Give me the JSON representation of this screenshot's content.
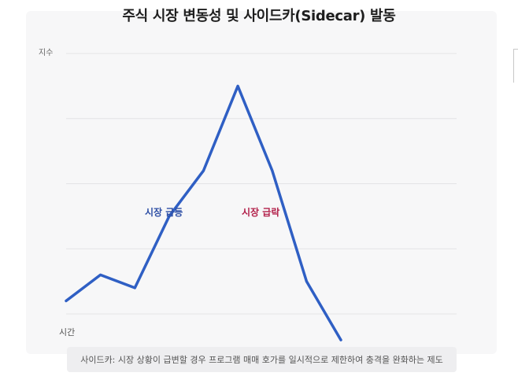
{
  "chart_data": {
    "type": "line",
    "title": "주식 시장 변동성 및 사이드카(Sidecar) 발동",
    "ylabel": "지수",
    "xlabel": "시간",
    "x": [
      1,
      2,
      3,
      4,
      5,
      6,
      7,
      8,
      9
    ],
    "series": [
      {
        "values": [
          10,
          30,
          20,
          75,
          110,
          175,
          110,
          25,
          -20
        ]
      }
    ],
    "ylim": [
      0,
      200
    ],
    "xlim": [
      1,
      9
    ],
    "grid": true,
    "annotations": [
      {
        "text": "시장 급등",
        "color": "#2e4fa5"
      },
      {
        "text": "시장 급락",
        "color": "#b2204a"
      }
    ],
    "caption": "사이드카: 시장 상황이 급변할 경우 프로그램 매매 호가를 일시적으로 제한하여 충격을 완화하는 제도",
    "colors": {
      "line": "#2f5fc4",
      "grid": "#e4e4e6",
      "panel": "#f7f7f8"
    }
  }
}
